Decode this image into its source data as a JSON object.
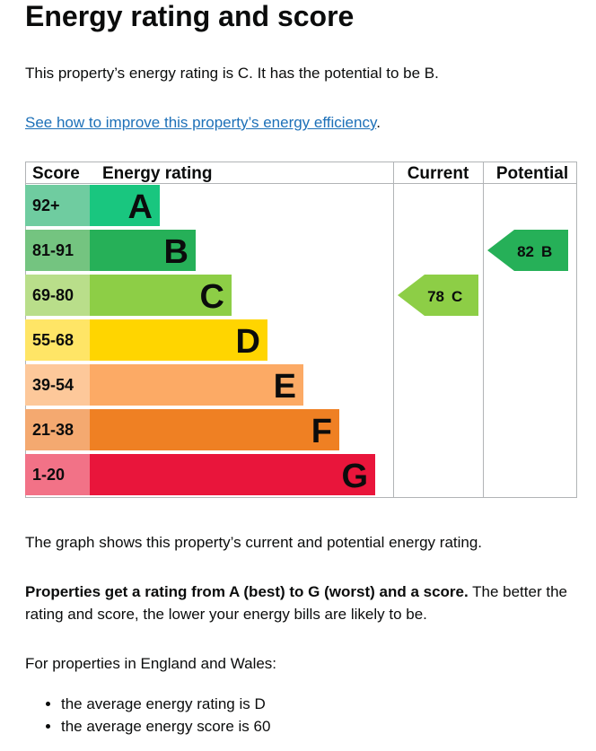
{
  "heading": "Energy rating and score",
  "intro": "This property’s energy rating is C. It has the potential to be B.",
  "link": {
    "text": "See how to improve this property’s energy efficiency",
    "end": "."
  },
  "graph": {
    "headers": [
      "Score",
      "Energy rating",
      "Current",
      "Potential"
    ],
    "bands": [
      {
        "score": "92+",
        "rating": "A",
        "color": "#19c67f",
        "tint": "#6fcca0"
      },
      {
        "score": "81-91",
        "rating": "B",
        "color": "#26b058",
        "tint": "#74c480"
      },
      {
        "score": "69-80",
        "rating": "C",
        "color": "#8dce46",
        "tint": "#b9de8a"
      },
      {
        "score": "55-68",
        "rating": "D",
        "color": "#ffd500",
        "tint": "#ffe566"
      },
      {
        "score": "39-54",
        "rating": "E",
        "color": "#fcaa65",
        "tint": "#fdc89a"
      },
      {
        "score": "21-38",
        "rating": "F",
        "color": "#ef8023",
        "tint": "#f4a970"
      },
      {
        "score": "1-20",
        "rating": "G",
        "color": "#e9153b",
        "tint": "#f27287"
      }
    ],
    "current": {
      "score": 78,
      "rating": "C"
    },
    "potential": {
      "score": 82,
      "rating": "B"
    }
  },
  "graph_note": "The graph shows this property’s current and potential energy rating.",
  "explain": {
    "bold": "Properties get a rating from A (best) to G (worst) and a score.",
    "rest": " The better the rating and score, the lower your energy bills are likely to be."
  },
  "region": "For properties in England and Wales:",
  "averages": [
    "the average energy rating is D",
    "the average energy score is 60"
  ]
}
